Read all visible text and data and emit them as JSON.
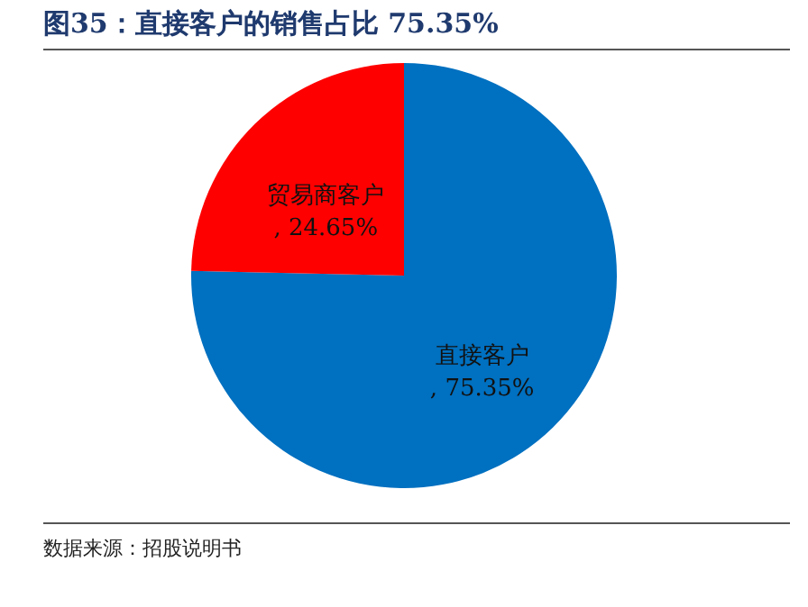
{
  "chart_data": {
    "type": "pie",
    "title": "图35：直接客户的销售占比 75.35%",
    "categories": [
      "直接客户",
      "贸易商客户"
    ],
    "values": [
      75.35,
      24.65
    ],
    "colors": [
      "#0070c0",
      "#ff0000"
    ],
    "value_labels": [
      ", 75.35%",
      ", 24.65%"
    ],
    "annotations": [
      "数据来源：招股说明书"
    ]
  }
}
